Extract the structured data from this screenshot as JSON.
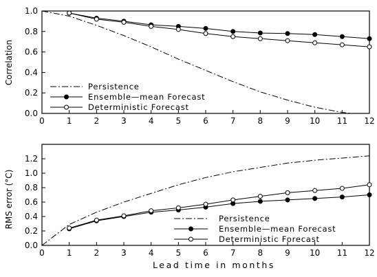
{
  "chart_data": [
    {
      "type": "line",
      "title": "",
      "xlabel": "",
      "ylabel": "Correlation",
      "xlim": [
        0,
        12
      ],
      "ylim": [
        0.0,
        1.0
      ],
      "xticks": [
        "0",
        "1",
        "2",
        "3",
        "4",
        "5",
        "6",
        "7",
        "8",
        "9",
        "10",
        "11",
        "12"
      ],
      "yticks": [
        "0.0",
        "0.2",
        "0.4",
        "0.6",
        "0.8",
        "1.0"
      ],
      "grid": false,
      "legend_position": "center-left",
      "series": [
        {
          "name": "Persistence",
          "style": "dashdot",
          "x": [
            0,
            1,
            2,
            3,
            4,
            5,
            6,
            7,
            8,
            9,
            10,
            11,
            12
          ],
          "y": [
            1.0,
            0.95,
            0.86,
            0.76,
            0.65,
            0.53,
            0.42,
            0.31,
            0.21,
            0.13,
            0.06,
            0.01,
            -0.02
          ]
        },
        {
          "name": "Ensemble—mean Forecast",
          "style": "filled",
          "x": [
            1,
            2,
            3,
            4,
            5,
            6,
            7,
            8,
            9,
            10,
            11,
            12
          ],
          "y": [
            0.98,
            0.93,
            0.9,
            0.865,
            0.85,
            0.83,
            0.8,
            0.785,
            0.78,
            0.77,
            0.75,
            0.73
          ]
        },
        {
          "name": "Deterministic Forecast",
          "style": "open",
          "x": [
            1,
            2,
            3,
            4,
            5,
            6,
            7,
            8,
            9,
            10,
            11,
            12
          ],
          "y": [
            0.98,
            0.92,
            0.89,
            0.85,
            0.82,
            0.78,
            0.75,
            0.73,
            0.71,
            0.69,
            0.67,
            0.65
          ]
        }
      ]
    },
    {
      "type": "line",
      "title": "",
      "xlabel": "Lead time in months",
      "ylabel": "RMS error (°C)",
      "xlim": [
        0,
        12
      ],
      "ylim": [
        0.0,
        1.4
      ],
      "xticks": [
        "0",
        "1",
        "2",
        "3",
        "4",
        "5",
        "6",
        "7",
        "8",
        "9",
        "10",
        "11",
        "12"
      ],
      "yticks": [
        "0.0",
        "0.2",
        "0.4",
        "0.6",
        "0.8",
        "1.0",
        "1.2"
      ],
      "grid": false,
      "legend_position": "bottom-right",
      "series": [
        {
          "name": "Persistence",
          "style": "dashdot",
          "x": [
            0,
            1,
            2,
            3,
            4,
            5,
            6,
            7,
            8,
            9,
            10,
            11,
            12
          ],
          "y": [
            0.0,
            0.29,
            0.46,
            0.6,
            0.72,
            0.84,
            0.94,
            1.02,
            1.08,
            1.14,
            1.18,
            1.21,
            1.24
          ]
        },
        {
          "name": "Ensemble—mean Forecast",
          "style": "filled",
          "x": [
            1,
            2,
            3,
            4,
            5,
            6,
            7,
            8,
            9,
            10,
            11,
            12
          ],
          "y": [
            0.23,
            0.34,
            0.4,
            0.46,
            0.49,
            0.53,
            0.58,
            0.61,
            0.63,
            0.65,
            0.67,
            0.7
          ]
        },
        {
          "name": "Deterministic Forecast",
          "style": "open",
          "x": [
            1,
            2,
            3,
            4,
            5,
            6,
            7,
            8,
            9,
            10,
            11,
            12
          ],
          "y": [
            0.24,
            0.35,
            0.41,
            0.48,
            0.52,
            0.57,
            0.63,
            0.68,
            0.73,
            0.76,
            0.79,
            0.84
          ]
        }
      ]
    }
  ]
}
